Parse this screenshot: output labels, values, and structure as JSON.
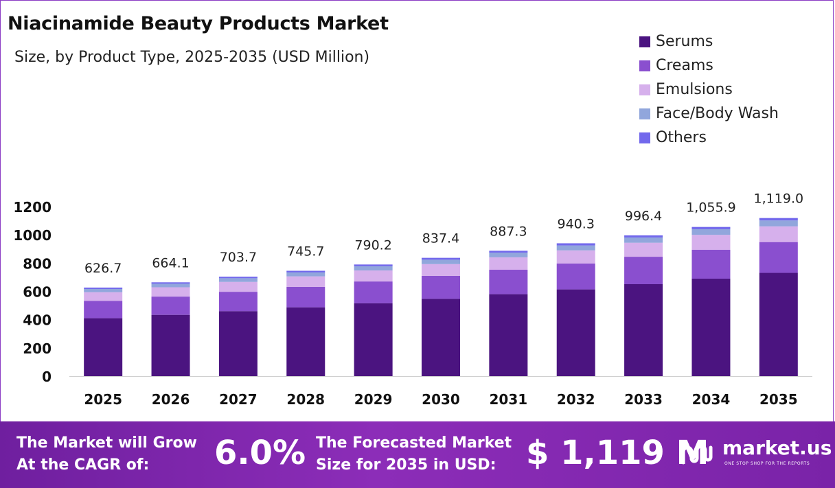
{
  "chart_data": {
    "type": "bar",
    "stacked": true,
    "title": "Niacinamide Beauty Products Market",
    "subtitle": "Size, by Product Type, 2025-2035 (USD Million)",
    "categories": [
      "2025",
      "2026",
      "2027",
      "2028",
      "2029",
      "2030",
      "2031",
      "2032",
      "2033",
      "2034",
      "2035"
    ],
    "ytick_labels": [
      "0",
      "200",
      "400",
      "600",
      "800",
      "1000",
      "1200"
    ],
    "ylim": [
      0,
      1200
    ],
    "legend_position": "top-right",
    "grid": false,
    "totals_labels": [
      "626.7",
      "664.1",
      "703.7",
      "745.7",
      "790.2",
      "837.4",
      "887.3",
      "940.3",
      "996.4",
      "1,055.9",
      "1,119.0"
    ],
    "totals": [
      626.7,
      664.1,
      703.7,
      745.7,
      790.2,
      837.4,
      887.3,
      940.3,
      996.4,
      1055.9,
      1119.0
    ],
    "series": [
      {
        "name": "Serums",
        "color": "#4b1480",
        "values": [
          410,
          434,
          460,
          487,
          516,
          547,
          580,
          614,
          651,
          690,
          731
        ]
      },
      {
        "name": "Creams",
        "color": "#8a4fcf",
        "values": [
          122,
          129,
          137,
          145,
          154,
          163,
          173,
          183,
          194,
          205,
          218
        ]
      },
      {
        "name": "Emulsions",
        "color": "#d6b0ec",
        "values": [
          62,
          66,
          70,
          74,
          78,
          83,
          88,
          93,
          99,
          105,
          111
        ]
      },
      {
        "name": "Face/Body Wash",
        "color": "#91a6dc",
        "values": [
          23,
          25,
          26,
          28,
          30,
          31,
          33,
          35,
          37,
          40,
          42
        ]
      },
      {
        "name": "Others",
        "color": "#7268ec",
        "values": [
          9.7,
          10.1,
          10.7,
          11.7,
          12.2,
          13.4,
          13.3,
          15.3,
          15.4,
          15.9,
          17.0
        ]
      }
    ]
  },
  "banner": {
    "cagr_label_line1": "The Market will Grow",
    "cagr_label_line2": "At the CAGR of:",
    "cagr_value": "6.0%",
    "forecast_label_line1": "The Forecasted Market",
    "forecast_label_line2": "Size for 2035 in USD:",
    "forecast_value": "$ 1,119 M",
    "brand_name": "market.us",
    "brand_tagline": "ONE STOP SHOP FOR THE REPORTS"
  }
}
